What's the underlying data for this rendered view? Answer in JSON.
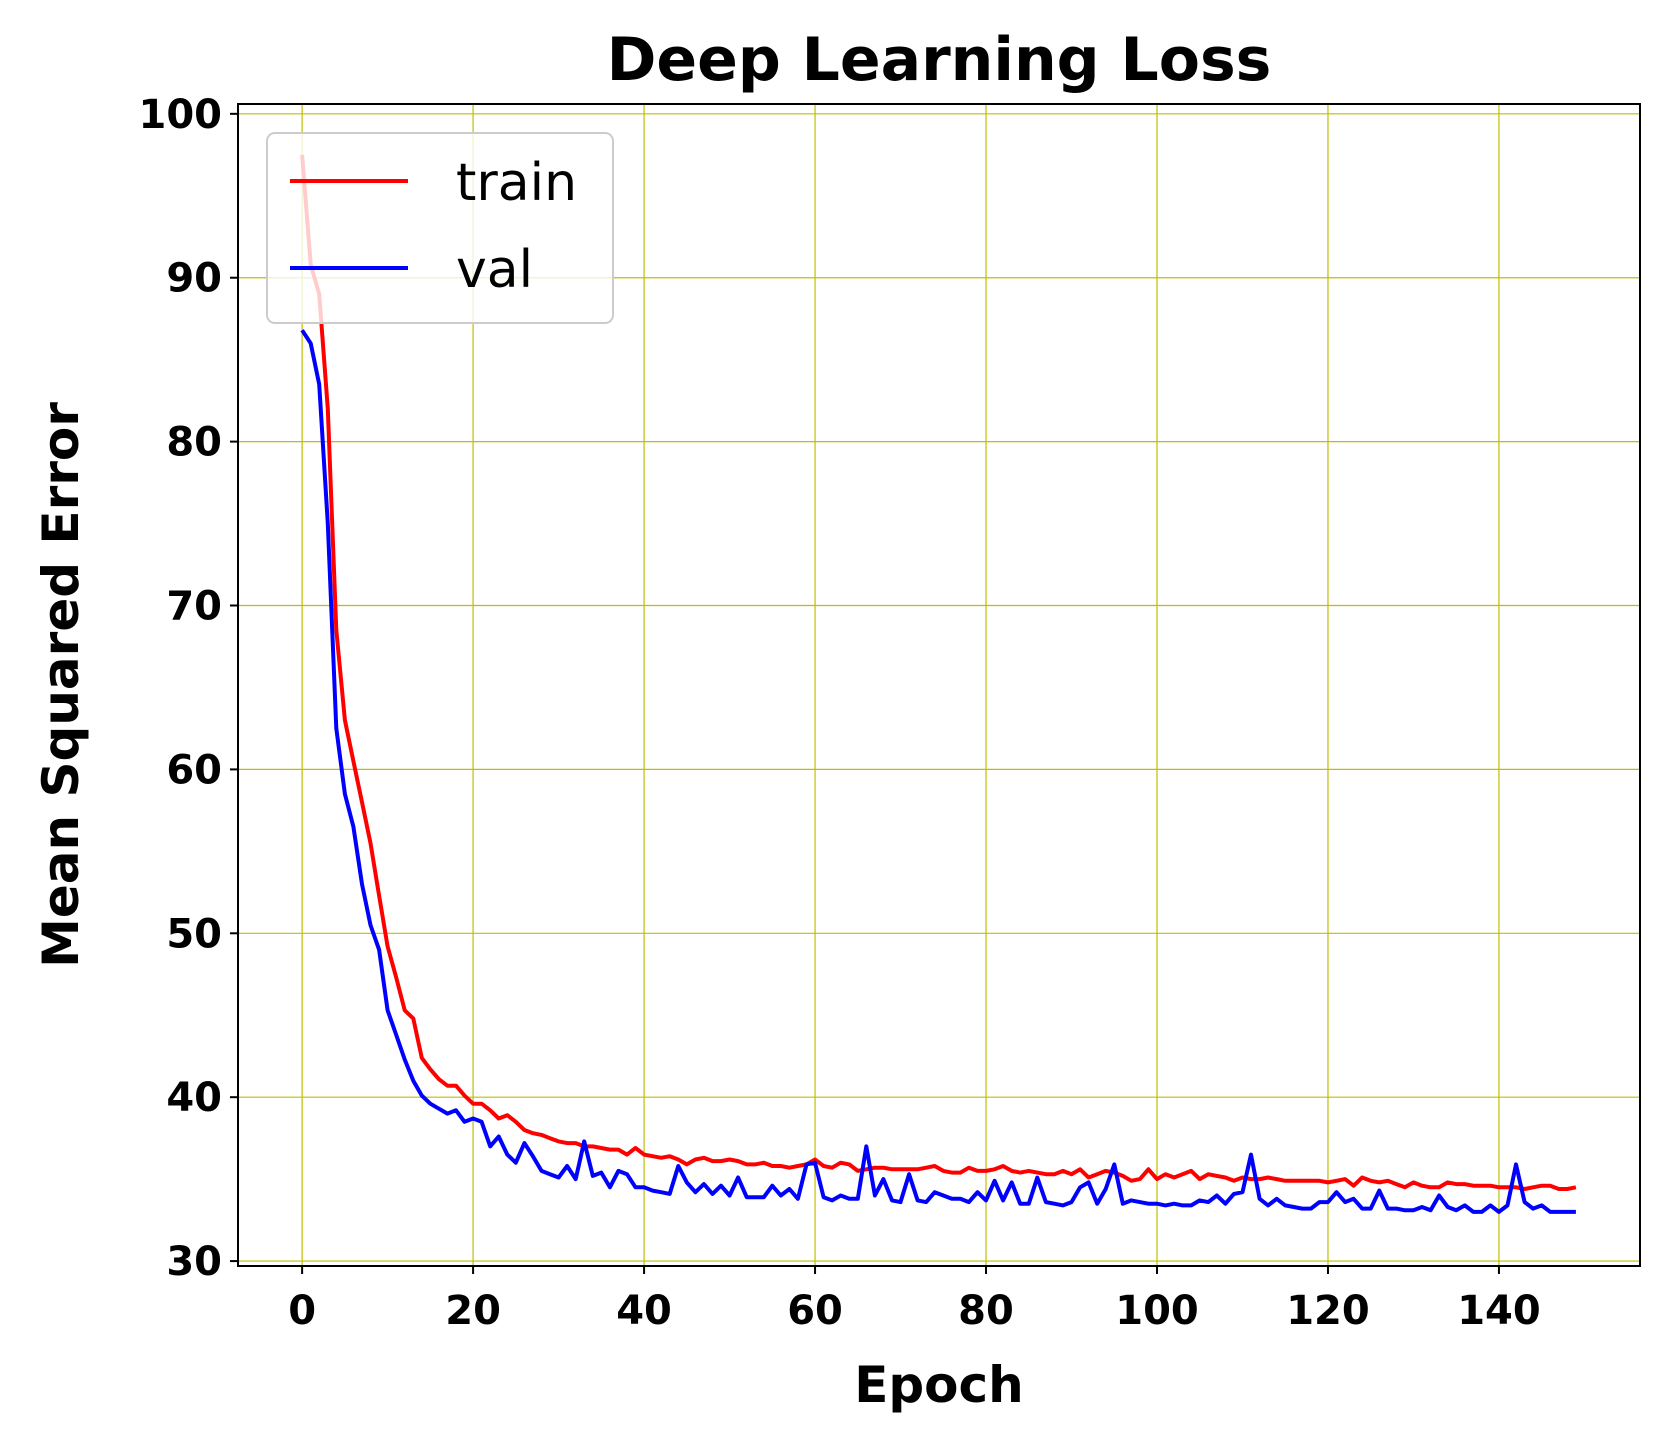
{
  "chart_data": {
    "type": "line",
    "title": "Deep Learning Loss",
    "xlabel": "Epoch",
    "ylabel": "Mean Squared Error",
    "xlim": [
      -7.5,
      156.5
    ],
    "ylim": [
      29.7,
      100.6
    ],
    "xticks": [
      0,
      20,
      40,
      60,
      80,
      100,
      120,
      140
    ],
    "yticks": [
      30,
      40,
      50,
      60,
      70,
      80,
      90,
      100
    ],
    "grid": true,
    "grid_color": "#bfbf00",
    "legend_position": "upper-left",
    "x": [
      0,
      1,
      2,
      3,
      4,
      5,
      6,
      7,
      8,
      9,
      10,
      11,
      12,
      13,
      14,
      15,
      16,
      17,
      18,
      19,
      20,
      21,
      22,
      23,
      24,
      25,
      26,
      27,
      28,
      29,
      30,
      31,
      32,
      33,
      34,
      35,
      36,
      37,
      38,
      39,
      40,
      41,
      42,
      43,
      44,
      45,
      46,
      47,
      48,
      49,
      50,
      51,
      52,
      53,
      54,
      55,
      56,
      57,
      58,
      59,
      60,
      61,
      62,
      63,
      64,
      65,
      66,
      67,
      68,
      69,
      70,
      71,
      72,
      73,
      74,
      75,
      76,
      77,
      78,
      79,
      80,
      81,
      82,
      83,
      84,
      85,
      86,
      87,
      88,
      89,
      90,
      91,
      92,
      93,
      94,
      95,
      96,
      97,
      98,
      99,
      100,
      101,
      102,
      103,
      104,
      105,
      106,
      107,
      108,
      109,
      110,
      111,
      112,
      113,
      114,
      115,
      116,
      117,
      118,
      119,
      120,
      121,
      122,
      123,
      124,
      125,
      126,
      127,
      128,
      129,
      130,
      131,
      132,
      133,
      134,
      135,
      136,
      137,
      138,
      139,
      140,
      141,
      142,
      143,
      144,
      145,
      146,
      147,
      148,
      149
    ],
    "series": [
      {
        "name": "train",
        "color": "#ff0000",
        "values": [
          97.5,
          90.8,
          89.0,
          82.0,
          68.5,
          63.0,
          60.5,
          58.0,
          55.5,
          52.3,
          49.2,
          47.3,
          45.3,
          44.8,
          42.4,
          41.7,
          41.1,
          40.7,
          40.7,
          40.1,
          39.6,
          39.6,
          39.2,
          38.7,
          38.9,
          38.5,
          38.0,
          37.8,
          37.7,
          37.5,
          37.3,
          37.2,
          37.2,
          37.0,
          37.0,
          36.9,
          36.8,
          36.8,
          36.5,
          36.9,
          36.5,
          36.4,
          36.3,
          36.4,
          36.2,
          35.9,
          36.2,
          36.3,
          36.1,
          36.1,
          36.2,
          36.1,
          35.9,
          35.9,
          36.0,
          35.8,
          35.8,
          35.7,
          35.8,
          35.9,
          36.2,
          35.8,
          35.7,
          36.0,
          35.9,
          35.5,
          35.6,
          35.7,
          35.7,
          35.6,
          35.6,
          35.6,
          35.6,
          35.7,
          35.8,
          35.5,
          35.4,
          35.4,
          35.7,
          35.5,
          35.5,
          35.6,
          35.8,
          35.5,
          35.4,
          35.5,
          35.4,
          35.3,
          35.3,
          35.5,
          35.3,
          35.6,
          35.1,
          35.3,
          35.5,
          35.4,
          35.2,
          34.9,
          35.0,
          35.6,
          35.0,
          35.3,
          35.1,
          35.3,
          35.5,
          35.0,
          35.3,
          35.2,
          35.1,
          34.9,
          35.1,
          35.0,
          35.0,
          35.1,
          35.0,
          34.9,
          34.9,
          34.9,
          34.9,
          34.9,
          34.8,
          34.9,
          35.0,
          34.6,
          35.1,
          34.9,
          34.8,
          34.9,
          34.7,
          34.5,
          34.8,
          34.6,
          34.5,
          34.5,
          34.8,
          34.7,
          34.7,
          34.6,
          34.6,
          34.6,
          34.5,
          34.5,
          34.5,
          34.4,
          34.5,
          34.6,
          34.6,
          34.4,
          34.4,
          34.5
        ]
      },
      {
        "name": "val",
        "color": "#0000ff",
        "values": [
          86.8,
          86.0,
          83.5,
          75.0,
          62.5,
          58.5,
          56.5,
          53.0,
          50.5,
          49.0,
          45.3,
          43.8,
          42.3,
          41.0,
          40.1,
          39.6,
          39.3,
          39.0,
          39.2,
          38.5,
          38.7,
          38.5,
          37.0,
          37.6,
          36.5,
          36.0,
          37.2,
          36.4,
          35.5,
          35.3,
          35.1,
          35.8,
          35.0,
          37.3,
          35.2,
          35.4,
          34.5,
          35.5,
          35.3,
          34.5,
          34.5,
          34.3,
          34.2,
          34.1,
          35.8,
          34.8,
          34.2,
          34.7,
          34.1,
          34.6,
          34.0,
          35.1,
          33.9,
          33.9,
          33.9,
          34.6,
          34.0,
          34.4,
          33.8,
          35.9,
          36.0,
          33.9,
          33.7,
          34.0,
          33.8,
          33.8,
          37.0,
          34.0,
          35.0,
          33.7,
          33.6,
          35.3,
          33.7,
          33.6,
          34.2,
          34.0,
          33.8,
          33.8,
          33.6,
          34.2,
          33.7,
          34.9,
          33.7,
          34.8,
          33.5,
          33.5,
          35.1,
          33.6,
          33.5,
          33.4,
          33.6,
          34.5,
          34.8,
          33.5,
          34.4,
          35.9,
          33.5,
          33.7,
          33.6,
          33.5,
          33.5,
          33.4,
          33.5,
          33.4,
          33.4,
          33.7,
          33.6,
          34.0,
          33.5,
          34.1,
          34.2,
          36.5,
          33.8,
          33.4,
          33.8,
          33.4,
          33.3,
          33.2,
          33.2,
          33.6,
          33.6,
          34.2,
          33.6,
          33.8,
          33.2,
          33.2,
          34.3,
          33.2,
          33.2,
          33.1,
          33.1,
          33.3,
          33.1,
          34.0,
          33.3,
          33.1,
          33.4,
          33.0,
          33.0,
          33.4,
          33.0,
          33.4,
          35.9,
          33.6,
          33.2,
          33.4,
          33.0,
          33.0,
          33.0,
          33.0
        ]
      }
    ]
  }
}
